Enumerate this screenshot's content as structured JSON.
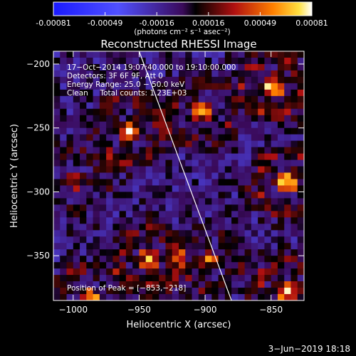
{
  "chart_data": {
    "type": "heatmap",
    "title": "Reconstructed RHESSI Image",
    "xlabel": "Heliocentric X (arcsec)",
    "ylabel": "Heliocentric Y (arcsec)",
    "xlim": [
      -1015,
      -825
    ],
    "ylim": [
      -385,
      -190
    ],
    "xticks": [
      {
        "value": -1000,
        "label": "−1000"
      },
      {
        "value": -950,
        "label": "−950"
      },
      {
        "value": -900,
        "label": "−900"
      },
      {
        "value": -850,
        "label": "−850"
      }
    ],
    "yticks": [
      {
        "value": -200,
        "label": "−200"
      },
      {
        "value": -250,
        "label": "−250"
      },
      {
        "value": -300,
        "label": "−300"
      },
      {
        "value": -350,
        "label": "−350"
      }
    ],
    "colorbar": {
      "min": -0.00081,
      "max": 0.00081,
      "tick_labels": [
        "-0.00081",
        "-0.00049",
        "-0.00016",
        "0.00016",
        "0.00049",
        "0.00081"
      ],
      "unit_label": "(photons cm⁻² s⁻¹ asec⁻²)"
    },
    "annotations": [
      "17−Oct−2014 19:07:40.000 to 19:10:00.000",
      "Detectors: 3F 6F 9F, Att 0",
      "Energy Range: 25.0 − 50.0 keV",
      "Clean     Total counts: 1.23E+03"
    ],
    "peak_label": "Position of Peak = [−853,−218]",
    "peak": [
      -853,
      -218
    ],
    "bright_sources": [
      {
        "x": -960,
        "y": -250,
        "v": 0.0007
      },
      {
        "x": -905,
        "y": -235,
        "v": 0.0006
      },
      {
        "x": -850,
        "y": -215,
        "v": 0.00081
      },
      {
        "x": -840,
        "y": -290,
        "v": 0.00075
      },
      {
        "x": -945,
        "y": -350,
        "v": 0.00072
      },
      {
        "x": -900,
        "y": -350,
        "v": 0.0005
      },
      {
        "x": -840,
        "y": -375,
        "v": 0.00078
      },
      {
        "x": -990,
        "y": -380,
        "v": 0.0006
      },
      {
        "x": -1000,
        "y": -290,
        "v": 0.0004
      }
    ],
    "limb_line": [
      [
        -950,
        -190
      ],
      [
        -880,
        -385
      ]
    ]
  },
  "footer": {
    "date": "3−Jun−2019 18:18"
  }
}
